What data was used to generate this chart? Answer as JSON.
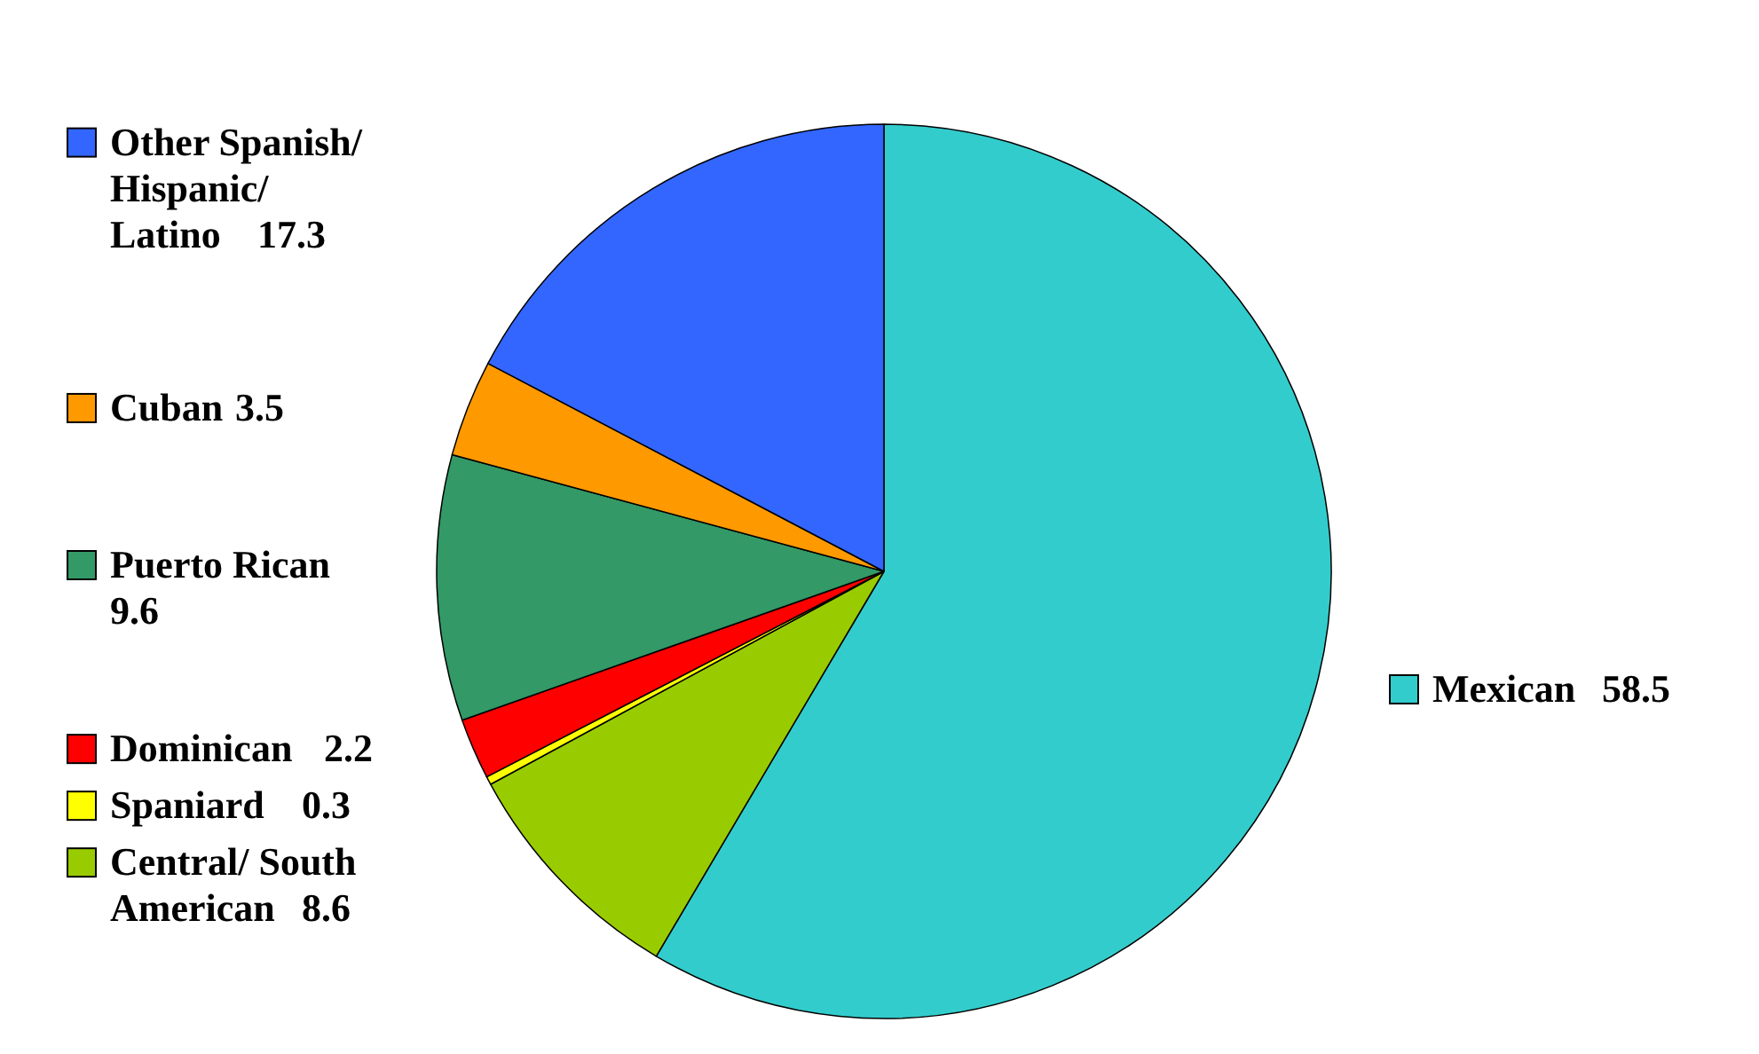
{
  "chart_data": {
    "type": "pie",
    "categories": [
      "Mexican",
      "Central/ South American",
      "Spaniard",
      "Dominican",
      "Puerto Rican",
      "Cuban",
      "Other Spanish/ Hispanic/ Latino"
    ],
    "values": [
      58.5,
      8.6,
      0.3,
      2.2,
      9.6,
      3.5,
      17.3
    ],
    "colors": [
      "#33cccc",
      "#99cc00",
      "#ffff00",
      "#ff0000",
      "#339966",
      "#ff9900",
      "#3366ff"
    ],
    "data_labels": true,
    "legend": "left"
  }
}
